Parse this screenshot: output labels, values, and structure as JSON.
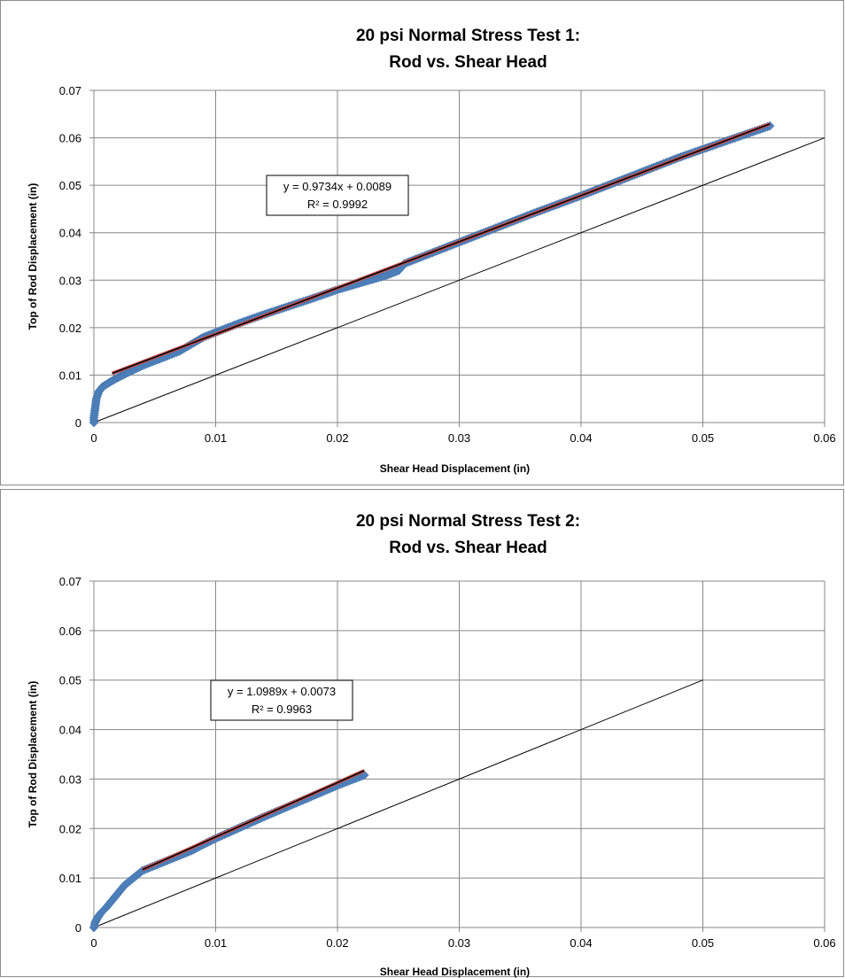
{
  "chart_data": [
    {
      "type": "scatter",
      "title": [
        "20 psi Normal Stress Test 1:",
        "Rod vs. Shear Head"
      ],
      "xlabel": "Shear Head Displacement  (in)",
      "ylabel": "Top of Rod Displacement  (in)",
      "xlim": [
        0,
        0.06
      ],
      "ylim": [
        0,
        0.07
      ],
      "xticks": [
        "0",
        "0.01",
        "0.02",
        "0.03",
        "0.04",
        "0.05",
        "0.06"
      ],
      "yticks": [
        "0",
        "0.01",
        "0.02",
        "0.03",
        "0.04",
        "0.05",
        "0.06",
        "0.07"
      ],
      "grid": true,
      "marker_color": "#4f81bd",
      "fit_color": "#c0504d",
      "series": [
        {
          "type": "scatter",
          "points": [
            [
              0,
              0
            ],
            [
              0,
              0.001
            ],
            [
              0.0001,
              0.003
            ],
            [
              0.0002,
              0.005
            ],
            [
              0.0004,
              0.0065
            ],
            [
              0.0007,
              0.0075
            ],
            [
              0.001,
              0.008
            ],
            [
              0.0015,
              0.0088
            ],
            [
              0.002,
              0.0095
            ],
            [
              0.003,
              0.0108
            ],
            [
              0.004,
              0.012
            ],
            [
              0.005,
              0.013
            ],
            [
              0.006,
              0.014
            ],
            [
              0.007,
              0.015
            ],
            [
              0.008,
              0.0165
            ],
            [
              0.009,
              0.018
            ],
            [
              0.01,
              0.019
            ],
            [
              0.012,
              0.021
            ],
            [
              0.014,
              0.0228
            ],
            [
              0.016,
              0.0245
            ],
            [
              0.018,
              0.0262
            ],
            [
              0.02,
              0.028
            ],
            [
              0.022,
              0.0295
            ],
            [
              0.024,
              0.031
            ],
            [
              0.025,
              0.032
            ],
            [
              0.0255,
              0.0335
            ],
            [
              0.027,
              0.035
            ],
            [
              0.03,
              0.038
            ],
            [
              0.033,
              0.041
            ],
            [
              0.036,
              0.044
            ],
            [
              0.04,
              0.0478
            ],
            [
              0.044,
              0.0518
            ],
            [
              0.048,
              0.0558
            ],
            [
              0.052,
              0.0594
            ],
            [
              0.0555,
              0.0625
            ]
          ]
        },
        {
          "type": "line",
          "role": "linear fit",
          "slope": 0.9734,
          "intercept": 0.0089,
          "x_range": [
            0.0015,
            0.0555
          ]
        },
        {
          "type": "line",
          "role": "1:1 reference",
          "points": [
            [
              0,
              0
            ],
            [
              0.06,
              0.06
            ]
          ]
        }
      ],
      "annotations": [
        "y = 0.9734x + 0.0089",
        "R² = 0.9992"
      ]
    },
    {
      "type": "scatter",
      "title": [
        "20 psi Normal Stress Test 2:",
        "Rod vs. Shear Head"
      ],
      "xlabel": "Shear Head Displacement  (in)",
      "ylabel": "Top of Rod Displacement  (in)",
      "xlim": [
        0,
        0.06
      ],
      "ylim": [
        0,
        0.07
      ],
      "xticks": [
        "0",
        "0.01",
        "0.02",
        "0.03",
        "0.04",
        "0.05",
        "0.06"
      ],
      "yticks": [
        "0",
        "0.01",
        "0.02",
        "0.03",
        "0.04",
        "0.05",
        "0.06",
        "0.07"
      ],
      "grid": true,
      "marker_color": "#4f81bd",
      "fit_color": "#c0504d",
      "series": [
        {
          "type": "scatter",
          "points": [
            [
              0,
              0
            ],
            [
              0.0001,
              0.001
            ],
            [
              0.0003,
              0.002
            ],
            [
              0.0006,
              0.003
            ],
            [
              0.001,
              0.004
            ],
            [
              0.0015,
              0.0055
            ],
            [
              0.002,
              0.007
            ],
            [
              0.0025,
              0.0085
            ],
            [
              0.003,
              0.0095
            ],
            [
              0.0035,
              0.0105
            ],
            [
              0.004,
              0.0115
            ],
            [
              0.005,
              0.0125
            ],
            [
              0.006,
              0.0135
            ],
            [
              0.007,
              0.0145
            ],
            [
              0.008,
              0.0155
            ],
            [
              0.009,
              0.0168
            ],
            [
              0.01,
              0.018
            ],
            [
              0.012,
              0.0202
            ],
            [
              0.014,
              0.0224
            ],
            [
              0.016,
              0.0245
            ],
            [
              0.018,
              0.0266
            ],
            [
              0.02,
              0.0287
            ],
            [
              0.0222,
              0.0308
            ]
          ]
        },
        {
          "type": "line",
          "role": "linear fit",
          "slope": 1.0989,
          "intercept": 0.0073,
          "x_range": [
            0.004,
            0.0222
          ]
        },
        {
          "type": "line",
          "role": "1:1 reference",
          "points": [
            [
              0,
              0
            ],
            [
              0.05,
              0.05
            ]
          ]
        }
      ],
      "annotations": [
        "y = 1.0989x + 0.0073",
        "R² = 0.9963"
      ]
    }
  ]
}
